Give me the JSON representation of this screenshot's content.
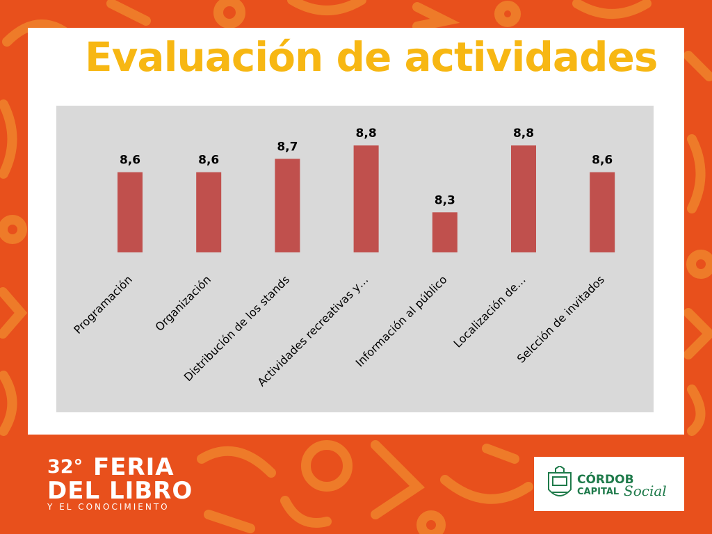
{
  "slide": {
    "title": "Evaluación de actividades",
    "colors": {
      "background": "#E8501C",
      "pattern": "#F08A2E",
      "title": "#F7B713",
      "bar": "#C0504D",
      "plot_area": "#D9D9D9",
      "brand_green": "#1E7A4A"
    }
  },
  "chart_data": {
    "type": "bar",
    "categories": [
      "Programación",
      "Organización",
      "Distribución de los stands",
      "Actividades recreativas y…",
      "Información al público",
      "Localización de…",
      "Selcción de invitados"
    ],
    "values": [
      8.6,
      8.6,
      8.7,
      8.8,
      8.3,
      8.8,
      8.6
    ],
    "value_labels": [
      "8,6",
      "8,6",
      "8,7",
      "8,8",
      "8,3",
      "8,8",
      "8,6"
    ],
    "ylim": [
      8.0,
      8.9
    ],
    "grid": false,
    "legend": "none"
  },
  "footer": {
    "feria_logo": {
      "edition": "32°",
      "line1": "FERIA",
      "line2": "DEL LIBRO",
      "subtitle": "Y EL CONOCIMIENTO"
    },
    "sponsor_logo": {
      "line1": "CÓRDOB",
      "line2": "CAPITAL",
      "line3": "Social",
      "icon": "city-crest-icon"
    }
  }
}
